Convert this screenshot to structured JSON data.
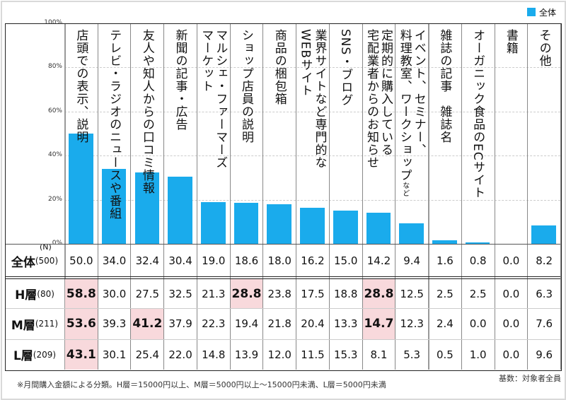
{
  "legend": {
    "label": "全体",
    "color": "#1aabec"
  },
  "n_label": "(N)",
  "chart_data": {
    "type": "bar",
    "yticks": [
      "100%",
      "80%",
      "60%",
      "40%",
      "20%",
      "0%"
    ],
    "ylim": [
      0,
      100
    ],
    "grid": true,
    "legend_position": "top-right",
    "categories": [
      [
        "店頭での表示、説明"
      ],
      [
        "テレビ・ラジオのニュースや番組"
      ],
      [
        "友人や知人からの口コミ情報"
      ],
      [
        "新聞の記事・広告"
      ],
      [
        "マルシェ・ファーマーズ",
        "マーケット"
      ],
      [
        "ショップ店員の説明"
      ],
      [
        "商品の梱包箱"
      ],
      [
        "業界サイトなど専門的な",
        "WEBサイト"
      ],
      [
        "SNS・ブログ"
      ],
      [
        "定期的に購入している",
        "宅配業者からのお知らせ"
      ],
      [
        "イベント、セミナー、",
        "料理教室、ワークショップ"
      ],
      [
        "雑誌の記事　雑誌名"
      ],
      [
        "オーガニック食品のECサイト"
      ],
      [
        "書籍"
      ],
      [
        "その他"
      ]
    ],
    "label_suffix": {
      "10": "など"
    },
    "series": [
      {
        "name": "全体",
        "n": "(500)",
        "values": [
          50.0,
          34.0,
          32.4,
          30.4,
          19.0,
          18.6,
          18.0,
          16.2,
          15.0,
          14.2,
          9.4,
          1.6,
          0.8,
          0.0,
          8.2
        ]
      },
      {
        "name": "H層",
        "n": "(80)",
        "values": [
          58.8,
          30.0,
          27.5,
          32.5,
          21.3,
          28.8,
          23.8,
          17.5,
          18.8,
          28.8,
          12.5,
          2.5,
          2.5,
          0.0,
          6.3
        ],
        "highlight": [
          0,
          5,
          9
        ]
      },
      {
        "name": "M層",
        "n": "(211)",
        "values": [
          53.6,
          39.3,
          41.2,
          37.9,
          22.3,
          19.4,
          21.8,
          20.4,
          13.3,
          14.7,
          12.3,
          2.4,
          0.0,
          0.0,
          7.6
        ],
        "highlight": [
          0,
          2,
          9
        ]
      },
      {
        "name": "L層",
        "n": "(209)",
        "values": [
          43.1,
          30.1,
          25.4,
          22.0,
          14.8,
          13.9,
          12.0,
          11.5,
          15.3,
          8.1,
          5.3,
          0.5,
          1.0,
          0.0,
          9.6
        ],
        "highlight": [
          0
        ]
      }
    ]
  },
  "highlight_color": "#f8d9dc",
  "base_note": "基数：対象者全員",
  "footnote": "※月間購入金額による分類。H層＝15000円以上、M層＝5000円以上～15000円未満、L層＝5000円未満"
}
